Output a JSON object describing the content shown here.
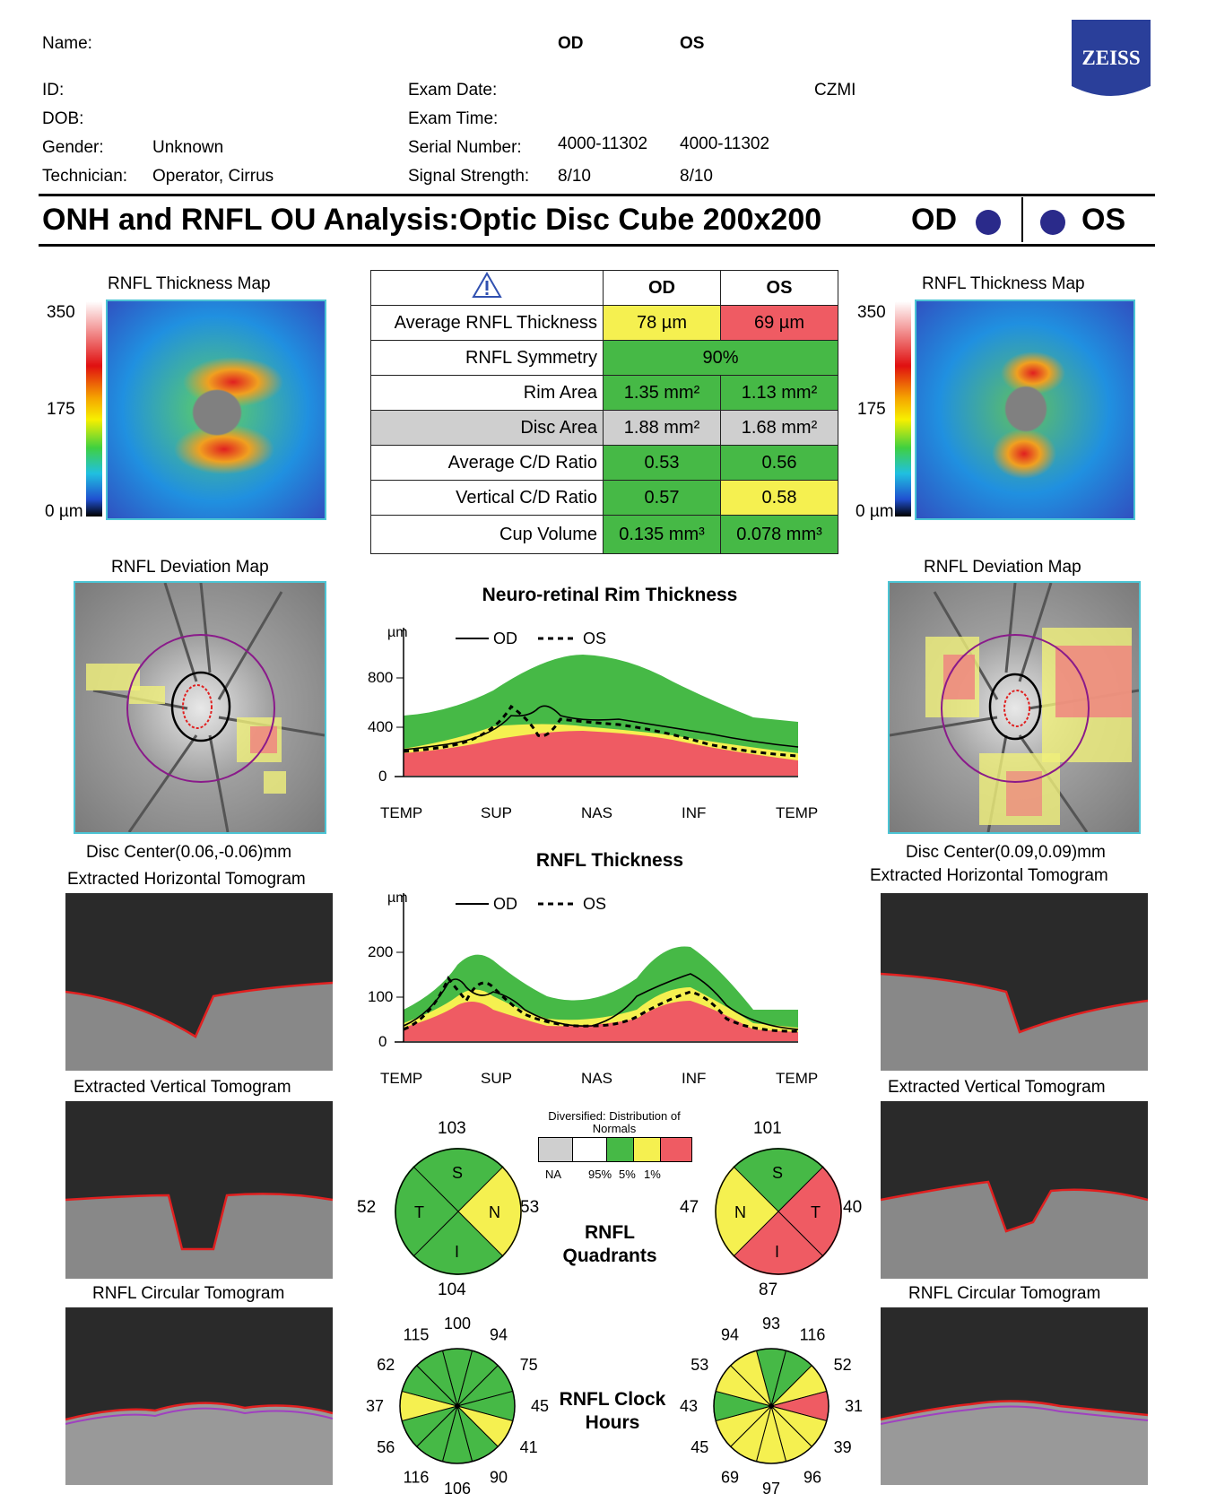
{
  "header": {
    "name_label": "Name:",
    "id_label": "ID:",
    "dob_label": "DOB:",
    "gender_label": "Gender:",
    "gender_value": "Unknown",
    "technician_label": "Technician:",
    "technician_value": "Operator, Cirrus",
    "exam_date_label": "Exam Date:",
    "exam_time_label": "Exam Time:",
    "serial_label": "Serial Number:",
    "serial_od": "4000-11302",
    "serial_os": "4000-11302",
    "signal_label": "Signal Strength:",
    "signal_od": "8/10",
    "signal_os": "8/10",
    "od_label": "OD",
    "os_label": "OS",
    "institution": "CZMI",
    "logo_text": "ZEISS"
  },
  "title": {
    "text": "ONH and RNFL OU Analysis:Optic Disc Cube 200x200",
    "od": "OD",
    "os": "OS",
    "eye_dot_color": "#2a2a8a"
  },
  "thickness_map": {
    "title": "RNFL Thickness Map",
    "scale_max": "350",
    "scale_mid": "175",
    "scale_min": "0 µm"
  },
  "metrics_table": {
    "warning_icon": "warning-triangle-icon",
    "col_od": "OD",
    "col_os": "OS",
    "rows": [
      {
        "label": "Average RNFL Thickness",
        "od": "78 µm",
        "os": "69 µm",
        "od_status": "y",
        "os_status": "r"
      },
      {
        "label": "RNFL Symmetry",
        "both": "90%",
        "status": "g"
      },
      {
        "label": "Rim Area",
        "od": "1.35 mm²",
        "os": "1.13 mm²",
        "od_status": "g",
        "os_status": "g"
      },
      {
        "label": "Disc Area",
        "od": "1.88 mm²",
        "os": "1.68 mm²",
        "od_status": "gr",
        "os_status": "gr"
      },
      {
        "label": "Average C/D Ratio",
        "od": "0.53",
        "os": "0.56",
        "od_status": "g",
        "os_status": "g"
      },
      {
        "label": "Vertical C/D Ratio",
        "od": "0.57",
        "os": "0.58",
        "od_status": "g",
        "os_status": "y"
      },
      {
        "label": "Cup Volume",
        "od": "0.135 mm³",
        "os": "0.078 mm³",
        "od_status": "g",
        "os_status": "g"
      }
    ]
  },
  "deviation_map": {
    "title": "RNFL Deviation Map",
    "od_center": "Disc Center(0.06,-0.06)mm",
    "os_center": "Disc Center(0.09,0.09)mm"
  },
  "tomograms": {
    "horizontal": "Extracted Horizontal Tomogram",
    "vertical": "Extracted Vertical Tomogram",
    "circular": "RNFL Circular Tomogram"
  },
  "chart_data": [
    {
      "type": "line",
      "title": "Neuro-retinal Rim Thickness",
      "ylabel": "µm",
      "legend": [
        "OD",
        "OS"
      ],
      "categories": [
        "TEMP",
        "SUP",
        "NAS",
        "INF",
        "TEMP"
      ],
      "yticks": [
        "0",
        "400",
        "800"
      ],
      "ylim": [
        0,
        800
      ]
    },
    {
      "type": "line",
      "title": "RNFL Thickness",
      "ylabel": "µm",
      "legend": [
        "OD",
        "OS"
      ],
      "categories": [
        "TEMP",
        "SUP",
        "NAS",
        "INF",
        "TEMP"
      ],
      "yticks": [
        "0",
        "100",
        "200"
      ],
      "ylim": [
        0,
        200
      ]
    }
  ],
  "legend_distribution": {
    "title": "Diversified: Distribution of Normals",
    "labels": [
      "NA",
      "95%",
      "5%",
      "1%"
    ]
  },
  "quadrants": {
    "label": "RNFL Quadrants",
    "od": {
      "S": "103",
      "N": "53",
      "I": "104",
      "T": "52",
      "letters": {
        "S": "S",
        "N": "N",
        "I": "I",
        "T": "T"
      }
    },
    "os": {
      "S": "101",
      "N": "47",
      "I": "87",
      "T": "40",
      "letters": {
        "S": "S",
        "N": "N",
        "I": "I",
        "T": "T"
      }
    }
  },
  "clock_hours": {
    "label": "RNFL Clock Hours",
    "od": [
      "100",
      "94",
      "75",
      "45",
      "41",
      "90",
      "106",
      "116",
      "56",
      "37",
      "62",
      "115"
    ],
    "os": [
      "93",
      "116",
      "52",
      "31",
      "39",
      "96",
      "97",
      "69",
      "45",
      "43",
      "53",
      "94"
    ]
  }
}
